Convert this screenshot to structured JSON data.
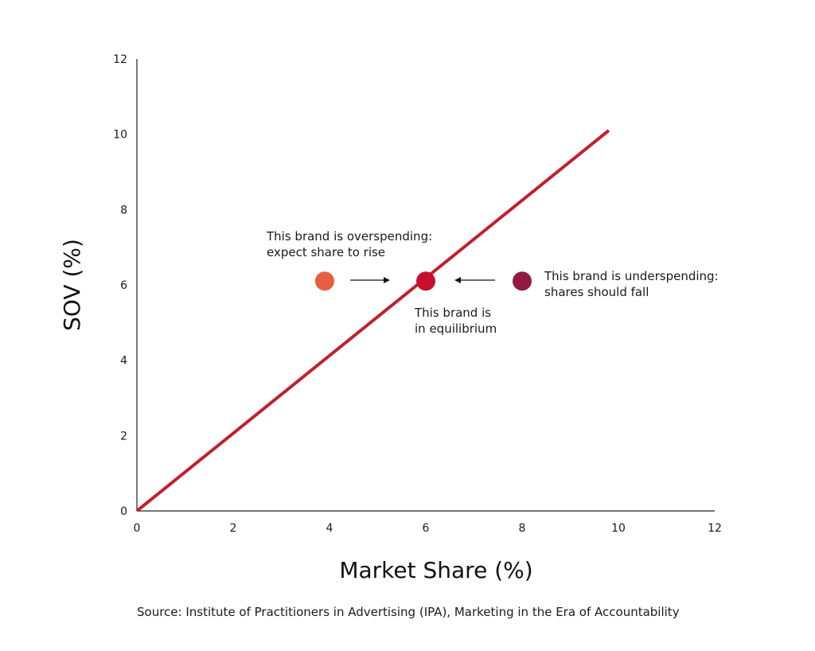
{
  "chart_data": {
    "type": "scatter",
    "title": "",
    "xlabel": "Market Share (%)",
    "ylabel": "SOV (%)",
    "xlim": [
      0,
      12
    ],
    "ylim": [
      0,
      12
    ],
    "x_ticks": [
      "0",
      "2",
      "4",
      "6",
      "8",
      "10",
      "12"
    ],
    "y_ticks": [
      "0",
      "2",
      "4",
      "6",
      "8",
      "10",
      "12"
    ],
    "grid": false,
    "line": {
      "x": [
        0,
        9.8
      ],
      "y": [
        0,
        10.1
      ],
      "color": "#c0202f"
    },
    "points": [
      {
        "x": 3.9,
        "y": 6.1,
        "color": "#e85d3f",
        "label": [
          "This brand is overspending:",
          "expect share to rise"
        ]
      },
      {
        "x": 6.0,
        "y": 6.1,
        "color": "#c8102e",
        "label": [
          "This brand is",
          "in equilibrium"
        ]
      },
      {
        "x": 8.0,
        "y": 6.1,
        "color": "#931a43",
        "label": [
          "This brand is underspending:",
          "shares should fall"
        ]
      }
    ],
    "source": "Source: Institute of Practitioners in Advertising (IPA), Marketing in the Era of Accountability"
  }
}
